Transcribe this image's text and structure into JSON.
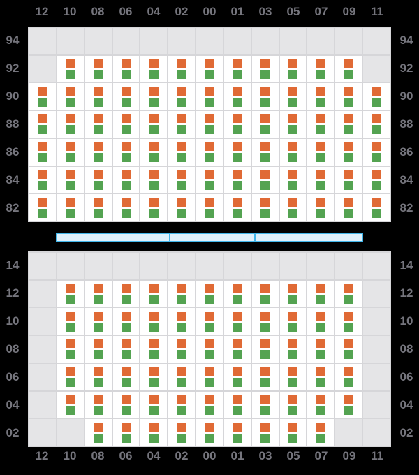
{
  "colors": {
    "background": "#000000",
    "label_text": "#75757d",
    "grid_line": "#d6d6d9",
    "cell_empty": "#e5e5e7",
    "cell_filled": "#ffffff",
    "marker_orange": "#e06a35",
    "marker_green": "#54a351",
    "aisle_fill": "#def0fb",
    "aisle_border": "#42b6ea"
  },
  "columns": [
    "12",
    "10",
    "08",
    "06",
    "04",
    "02",
    "00",
    "01",
    "03",
    "05",
    "07",
    "09",
    "11"
  ],
  "top_grid": {
    "rows": [
      {
        "label": "94",
        "cells": "0000000000000"
      },
      {
        "label": "92",
        "cells": "0111111111110"
      },
      {
        "label": "90",
        "cells": "1111111111111"
      },
      {
        "label": "88",
        "cells": "1111111111111"
      },
      {
        "label": "86",
        "cells": "1111111111111"
      },
      {
        "label": "84",
        "cells": "1111111111111"
      },
      {
        "label": "82",
        "cells": "1111111111111"
      }
    ]
  },
  "aisle_bar": {
    "segment_widths": [
      160,
      120,
      160
    ]
  },
  "bottom_grid": {
    "rows": [
      {
        "label": "14",
        "cells": "0000000000000"
      },
      {
        "label": "12",
        "cells": "0111111111110"
      },
      {
        "label": "10",
        "cells": "0111111111110"
      },
      {
        "label": "08",
        "cells": "0111111111110"
      },
      {
        "label": "06",
        "cells": "0111111111110"
      },
      {
        "label": "04",
        "cells": "0111111111110"
      },
      {
        "label": "02",
        "cells": "0011111111100"
      }
    ]
  },
  "cell_markers": [
    "orange-marker",
    "green-marker"
  ]
}
